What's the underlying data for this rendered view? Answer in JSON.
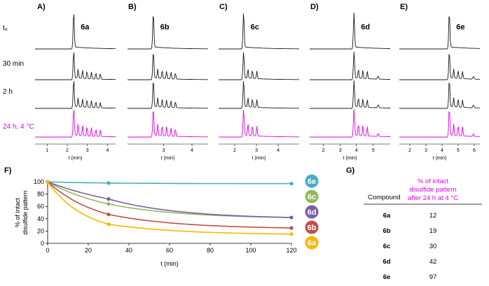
{
  "panel_labels": [
    "A)",
    "B)",
    "C)",
    "D)",
    "E)",
    "F)",
    "G)"
  ],
  "time_labels": [
    "t₀",
    "30 min",
    "2 h",
    "24 h, 4 °C"
  ],
  "colors": {
    "trace": "#1a1a1a",
    "trace_24h": "#e100e1",
    "6a": "#f5b800",
    "6b": "#c0504d",
    "6c": "#8fbc5a",
    "6d": "#7b5ea7",
    "6e": "#4bacc6"
  },
  "hplc_panels": [
    {
      "compound": "6a",
      "xlabel": "t (min)",
      "ticks": [
        "1",
        "2",
        "3",
        "4"
      ]
    },
    {
      "compound": "6b",
      "xlabel": "t (min)",
      "ticks": [
        "3",
        "4"
      ]
    },
    {
      "compound": "6c",
      "xlabel": "t (min)",
      "ticks": [
        "2",
        "3",
        "4"
      ]
    },
    {
      "compound": "6d",
      "xlabel": "t (min)",
      "ticks": [
        "2",
        "3",
        "4",
        "5"
      ]
    },
    {
      "compound": "6e",
      "xlabel": "t (min)",
      "ticks": [
        "2",
        "3",
        "4",
        "5",
        "6"
      ]
    }
  ],
  "chart_data": [
    {
      "type": "line",
      "panel": "F)",
      "xlabel": "t (min)",
      "ylabel": "% of intact disulfide pattern",
      "xlim": [
        0,
        120
      ],
      "ylim": [
        0,
        100
      ],
      "xticks": [
        0,
        20,
        40,
        60,
        80,
        100,
        120
      ],
      "yticks": [
        0,
        20,
        40,
        60,
        80,
        100
      ],
      "grid": false,
      "series": [
        {
          "name": "6e",
          "x": [
            0,
            30,
            120
          ],
          "y": [
            100,
            98,
            97
          ]
        },
        {
          "name": "6c",
          "x": [
            0,
            30,
            120
          ],
          "y": [
            100,
            64,
            42
          ]
        },
        {
          "name": "6d",
          "x": [
            0,
            30,
            120
          ],
          "y": [
            100,
            72,
            42
          ]
        },
        {
          "name": "6b",
          "x": [
            0,
            30,
            120
          ],
          "y": [
            100,
            47,
            25
          ]
        },
        {
          "name": "6a",
          "x": [
            0,
            30,
            120
          ],
          "y": [
            100,
            31,
            15
          ]
        }
      ],
      "legend_order": [
        "6e",
        "6c",
        "6d",
        "6b",
        "6a"
      ]
    },
    {
      "type": "table",
      "panel": "G)",
      "columns": [
        "Compound",
        "% of intact disulfide pattern after 24 h at 4 °C"
      ],
      "rows": [
        [
          "6a",
          "12"
        ],
        [
          "6b",
          "19"
        ],
        [
          "6c",
          "30"
        ],
        [
          "6d",
          "42"
        ],
        [
          "6e",
          "97"
        ]
      ]
    }
  ]
}
